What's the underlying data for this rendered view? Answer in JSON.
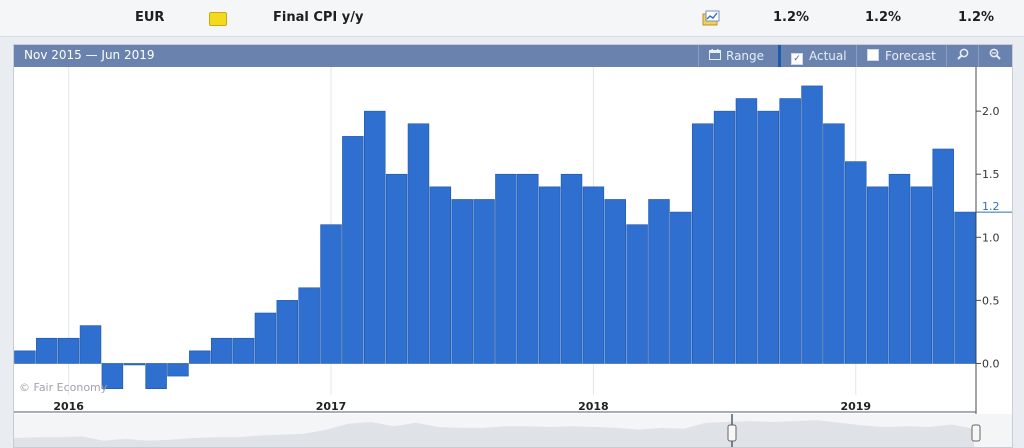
{
  "event_row": {
    "currency": "EUR",
    "event": "Final CPI y/y",
    "actual": "1.2%",
    "forecast": "1.2%",
    "previous": "1.2%",
    "icons": [
      "folder-icon",
      "graph-icon"
    ]
  },
  "toolbar": {
    "date_range": "Nov 2015 — Jun 2019",
    "range_label": "Range",
    "actual_label": "Actual",
    "actual_checked": true,
    "forecast_label": "Forecast",
    "forecast_checked": false,
    "icons": [
      "calendar-icon",
      "zoom-in-icon",
      "zoom-out-icon"
    ]
  },
  "copyright": "© Fair Economy",
  "colors": {
    "bar": "#2f6fcf",
    "bar_stroke": "#1f56a8",
    "toolbar": "#6a82ae",
    "last_value": "#2f6ec2"
  },
  "chart_data": {
    "type": "bar",
    "title": "",
    "xlabel": "",
    "ylabel": "",
    "x": [
      "2015-11",
      "2015-12",
      "2016-01",
      "2016-02",
      "2016-03",
      "2016-04",
      "2016-05",
      "2016-06",
      "2016-07",
      "2016-08",
      "2016-09",
      "2016-10",
      "2016-11",
      "2016-12",
      "2017-01",
      "2017-02",
      "2017-03",
      "2017-04",
      "2017-05",
      "2017-06",
      "2017-07",
      "2017-08",
      "2017-09",
      "2017-10",
      "2017-11",
      "2017-12",
      "2018-01",
      "2018-02",
      "2018-03",
      "2018-04",
      "2018-05",
      "2018-06",
      "2018-07",
      "2018-08",
      "2018-09",
      "2018-10",
      "2018-11",
      "2018-12",
      "2019-01",
      "2019-02",
      "2019-03",
      "2019-04",
      "2019-05",
      "2019-06"
    ],
    "values": [
      0.1,
      0.2,
      0.2,
      0.3,
      -0.2,
      0.0,
      -0.2,
      -0.1,
      0.1,
      0.2,
      0.2,
      0.4,
      0.5,
      0.6,
      1.1,
      1.8,
      2.0,
      1.5,
      1.9,
      1.4,
      1.3,
      1.3,
      1.5,
      1.5,
      1.4,
      1.5,
      1.4,
      1.3,
      1.1,
      1.3,
      1.2,
      1.9,
      2.0,
      2.1,
      2.0,
      2.1,
      2.2,
      1.9,
      1.6,
      1.4,
      1.5,
      1.4,
      1.7,
      1.2
    ],
    "ylim": [
      -0.25,
      2.35
    ],
    "yticks": [
      0.0,
      0.5,
      1.0,
      1.5,
      2.0
    ],
    "ytick_labels": [
      "0.0",
      "0.5",
      "1.0",
      "1.5",
      "2.0"
    ],
    "last_value_label": "1.2",
    "year_labels": [
      {
        "label": "2016",
        "x": "2016-01"
      },
      {
        "label": "2017",
        "x": "2017-01"
      },
      {
        "label": "2018",
        "x": "2018-01"
      },
      {
        "label": "2019",
        "x": "2019-01"
      }
    ],
    "grid": "vertical at year boundaries",
    "legend": "none"
  }
}
